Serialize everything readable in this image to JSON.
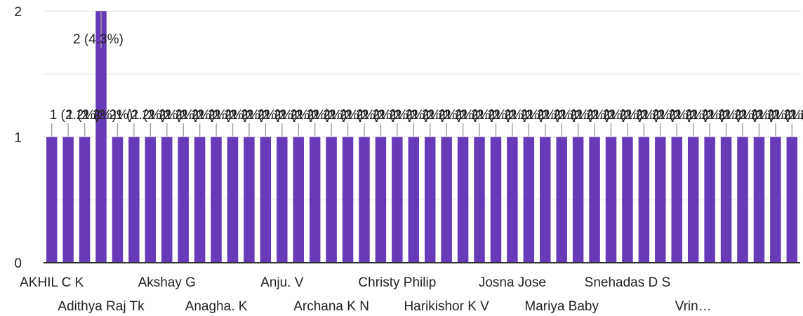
{
  "chart_data": {
    "type": "bar",
    "categories": [
      "AKHIL C K",
      "",
      "",
      "Adithya Raj Tk",
      "",
      "",
      "",
      "Akshay G",
      "",
      "",
      "Anagha. K",
      "",
      "",
      "",
      "Anju. V",
      "",
      "",
      "Archana K N",
      "",
      "",
      "",
      "Christy Philip",
      "",
      "",
      "Harikishor K V",
      "",
      "",
      "",
      "Josna Jose",
      "",
      "",
      "Mariya Baby",
      "",
      "",
      "",
      "Snehadas D S",
      "",
      "",
      "",
      "Vrin…",
      "",
      "",
      "",
      "",
      "",
      ""
    ],
    "values": [
      1,
      1,
      1,
      2,
      1,
      1,
      1,
      1,
      1,
      1,
      1,
      1,
      1,
      1,
      1,
      1,
      1,
      1,
      1,
      1,
      1,
      1,
      1,
      1,
      1,
      1,
      1,
      1,
      1,
      1,
      1,
      1,
      1,
      1,
      1,
      1,
      1,
      1,
      1,
      1,
      1,
      1,
      1,
      1,
      1,
      1
    ],
    "data_labels": [
      "1 (2.2%)",
      "1 (2.2%)",
      "1 (2.2%)",
      "2 (4.3%)",
      "1 (2.2%)",
      "1 (2.2%)",
      "1 (2.2%)",
      "1 (2.2%)",
      "1 (2.2%)",
      "1 (2.2%)",
      "1 (2.2%)",
      "1 (2.2%)",
      "1 (2.2%)",
      "1 (2.2%)",
      "1 (2.2%)",
      "1 (2.2%)",
      "1 (2.2%)",
      "1 (2.2%)",
      "1 (2.2%)",
      "1 (2.2%)",
      "1 (2.2%)",
      "1 (2.2%)",
      "1 (2.2%)",
      "1 (2.2%)",
      "1 (2.2%)",
      "1 (2.2%)",
      "1 (2.2%)",
      "1 (2.2%)",
      "1 (2.2%)",
      "1 (2.2%)",
      "1 (2.2%)",
      "1 (2.2%)",
      "1 (2.2%)",
      "1 (2.2%)",
      "1 (2.2%)",
      "1 (2.2%)",
      "1 (2.2%)",
      "1 (2.2%)",
      "1 (2.2%)",
      "1 (2.2%)",
      "1 (2.2%)",
      "1 (2.2%)",
      "1 (2.2%)",
      "1 (2.2%)",
      "1 (2.2%)",
      "1 (2.2%)"
    ],
    "yticks": [
      "0",
      "1",
      "2"
    ],
    "ylim": [
      0,
      2
    ],
    "grid": true,
    "bar_color": "#673ab7",
    "title": "",
    "xlabel": "",
    "ylabel": ""
  }
}
